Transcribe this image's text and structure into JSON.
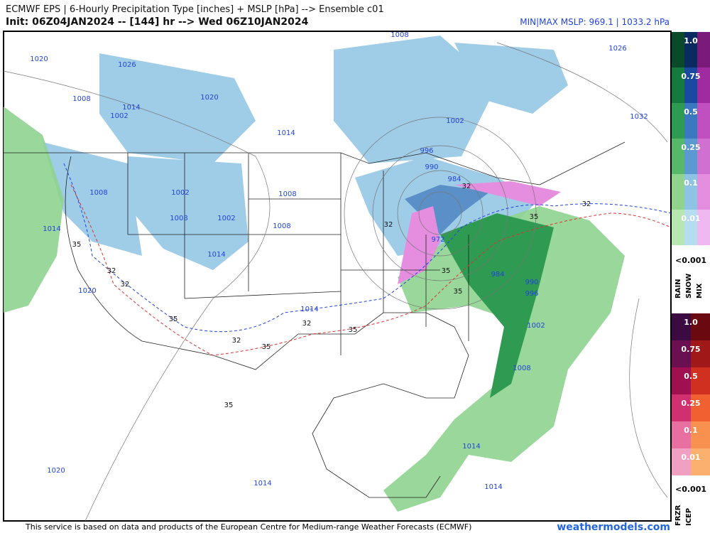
{
  "header": {
    "title": "ECMWF EPS | 6-Hourly Precipitation Type [inches] + MSLP [hPa] --> Ensemble c01",
    "init": "Init: 06Z04JAN2024 -- [144] hr --> Wed 06Z10JAN2024",
    "minmax": "MIN|MAX MSLP: 969.1 | 1033.2 hPa"
  },
  "map": {
    "isobar_labels": [
      "1008",
      "1020",
      "1026",
      "1026",
      "1020",
      "1008",
      "1014",
      "1002",
      "1032",
      "1002",
      "1014",
      "996",
      "990",
      "984",
      "1008",
      "1002",
      "1008",
      "1008",
      "1002",
      "1008",
      "1014",
      "972",
      "1014",
      "984",
      "990",
      "996",
      "1020",
      "1014",
      "1002",
      "1008",
      "1014",
      "1020",
      "1014",
      "1014"
    ],
    "thickness_labels": [
      "32",
      "32",
      "32",
      "35",
      "35",
      "32",
      "32",
      "35",
      "35",
      "35",
      "32",
      "35",
      "32",
      "35",
      "35"
    ]
  },
  "legend": {
    "upper": {
      "levels": [
        "1.0",
        "0.75",
        "0.5",
        "0.25",
        "0.1",
        "0.01"
      ],
      "floor": "<0.001",
      "types": [
        "RAIN",
        "SNOW",
        "MIX"
      ]
    },
    "lower": {
      "levels": [
        "1.0",
        "0.75",
        "0.5",
        "0.25",
        "0.1",
        "0.01"
      ],
      "floor": "<0.001",
      "types": [
        "FRZR",
        "ICEP"
      ]
    }
  },
  "footer": {
    "credit": "This service is based on data and products of the European Centre for Medium-range Weather Forecasts (ECMWF)",
    "site": "weathermodels.com"
  }
}
